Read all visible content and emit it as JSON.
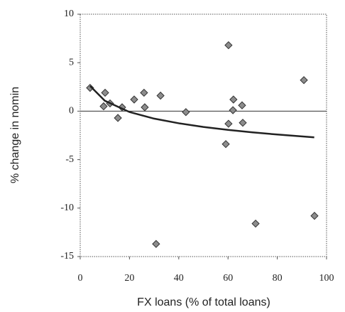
{
  "chart_data": {
    "type": "scatter",
    "x_label": "FX loans (% of total loans)",
    "y_label": "% change in nomin",
    "xlim": [
      0,
      100
    ],
    "xticks": [
      0,
      20,
      40,
      60,
      80,
      100
    ],
    "ylim": [
      -15,
      10
    ],
    "yticks": [
      -15,
      -10,
      -5,
      0,
      5,
      10
    ],
    "series": [
      {
        "type": "scatter",
        "color": "#8c8c8c",
        "x": [
          4.0,
          10.1,
          9.5,
          12.1,
          15.3,
          17.0,
          21.9,
          25.9,
          26.2,
          32.6,
          30.8,
          42.9,
          60.2,
          62.2,
          60.2,
          59.1,
          62.0,
          65.7,
          66.0,
          71.2,
          90.8,
          95.1
        ],
        "values": [
          2.4,
          1.9,
          0.5,
          0.8,
          -0.7,
          0.4,
          1.2,
          1.9,
          0.4,
          1.6,
          -13.7,
          -0.1,
          6.8,
          1.2,
          -1.3,
          -3.4,
          0.1,
          0.6,
          -1.2,
          -11.6,
          3.2,
          -10.8
        ]
      },
      {
        "type": "line",
        "color": "#222222",
        "x": [
          4,
          10,
          20,
          30,
          40,
          50,
          60,
          70,
          80,
          95
        ],
        "values": [
          2.6,
          1.07,
          -0.09,
          -0.77,
          -1.25,
          -1.63,
          -1.93,
          -2.19,
          -2.41,
          -2.7
        ]
      }
    ]
  }
}
